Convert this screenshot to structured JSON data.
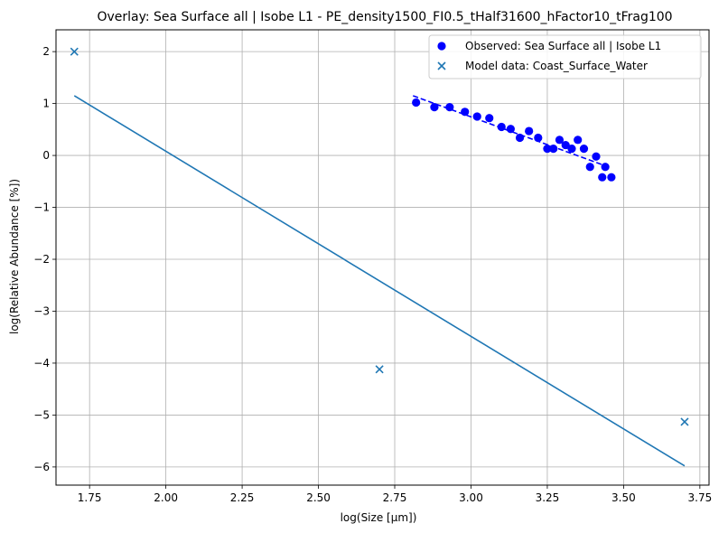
{
  "chart_data": {
    "type": "scatter",
    "title": "Overlay: Sea Surface all | Isobe L1 - PE_density1500_FI0.5_tHalf31600_hFactor10_tFrag100",
    "xlabel": "log(Size [μm])",
    "ylabel": "log(Relative Abundance [%])",
    "xlim": [
      1.64,
      3.78
    ],
    "ylim": [
      -6.35,
      2.42
    ],
    "x_ticks": [
      1.75,
      2.0,
      2.25,
      2.5,
      2.75,
      3.0,
      3.25,
      3.5,
      3.75
    ],
    "x_tick_labels": [
      "1.75",
      "2.00",
      "2.25",
      "2.50",
      "2.75",
      "3.00",
      "3.25",
      "3.50",
      "3.75"
    ],
    "y_ticks": [
      -6,
      -5,
      -4,
      -3,
      -2,
      -1,
      0,
      1,
      2
    ],
    "y_tick_labels": [
      "−6",
      "−5",
      "−4",
      "−3",
      "−2",
      "−1",
      "0",
      "1",
      "2"
    ],
    "grid": true,
    "legend_position": "top-right",
    "colors": {
      "observed": "#0000ff",
      "model": "#1f77b4"
    },
    "series": [
      {
        "name": "Observed: Sea Surface all | Isobe L1",
        "kind": "scatter",
        "marker": "circle",
        "color": "#0000ff",
        "x": [
          2.82,
          2.88,
          2.93,
          2.98,
          3.02,
          3.06,
          3.1,
          3.13,
          3.16,
          3.19,
          3.22,
          3.25,
          3.27,
          3.29,
          3.31,
          3.33,
          3.35,
          3.37,
          3.39,
          3.41,
          3.43,
          3.44,
          3.46
        ],
        "y": [
          1.02,
          0.93,
          0.93,
          0.84,
          0.75,
          0.72,
          0.55,
          0.51,
          0.34,
          0.47,
          0.34,
          0.13,
          0.13,
          0.3,
          0.2,
          0.13,
          0.3,
          0.13,
          -0.22,
          -0.02,
          -0.42,
          -0.22,
          -0.42
        ]
      },
      {
        "name": "Observed fit",
        "kind": "line",
        "dash": "dashed",
        "color": "#0000ff",
        "x": [
          2.81,
          3.45
        ],
        "y": [
          1.15,
          -0.22
        ]
      },
      {
        "name": "Model data: Coast_Surface_Water",
        "kind": "scatter",
        "marker": "x",
        "color": "#1f77b4",
        "x": [
          1.7,
          2.7,
          3.7
        ],
        "y": [
          2.0,
          -4.12,
          -5.13
        ]
      },
      {
        "name": "Model fit",
        "kind": "line",
        "dash": "solid",
        "color": "#1f77b4",
        "x": [
          1.7,
          3.7
        ],
        "y": [
          1.15,
          -5.98
        ]
      }
    ],
    "legend": [
      {
        "label": "Observed: Sea Surface all | Isobe L1",
        "marker": "circle",
        "color": "#0000ff"
      },
      {
        "label": "Model data: Coast_Surface_Water",
        "marker": "x",
        "color": "#1f77b4"
      }
    ]
  }
}
